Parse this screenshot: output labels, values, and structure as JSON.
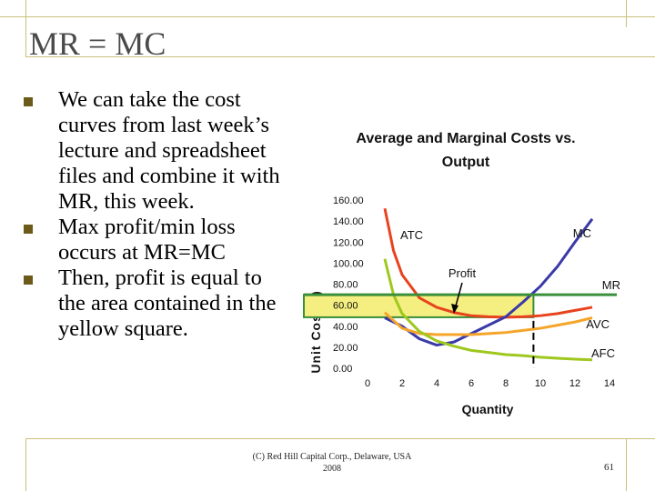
{
  "slide": {
    "title": "MR = MC",
    "bullets": [
      "We can take the cost curves from last week’s lecture and spreadsheet files and combine it with MR, this week.",
      "Max profit/min loss occurs at MR=MC",
      "Then, profit is equal to the area contained in the yellow square."
    ],
    "footer_line1": "(C) Red Hill Capital Corp., Delaware, USA",
    "footer_line2": "2008",
    "page_number": "61"
  },
  "chart_data": {
    "type": "line",
    "title": "Average and Marginal Costs vs. Output",
    "xlabel": "Quantity",
    "ylabel": "Unit Cost($)",
    "x_ticks": [
      "0",
      "2",
      "4",
      "6",
      "8",
      "10",
      "12",
      "14"
    ],
    "y_ticks": [
      "0.00",
      "20.00",
      "40.00",
      "60.00",
      "80.00",
      "100.00",
      "120.00",
      "140.00",
      "160.00"
    ],
    "xlim": [
      0,
      14
    ],
    "ylim": [
      0,
      160
    ],
    "grid": false,
    "series": [
      {
        "name": "ATC",
        "color": "#e8431e",
        "x": [
          1,
          1.5,
          2,
          3,
          4,
          5,
          6,
          7,
          8,
          9,
          10,
          11,
          12,
          13
        ],
        "y": [
          152,
          112,
          89,
          67,
          58,
          53,
          50,
          49,
          48.5,
          49,
          50,
          52,
          55,
          58
        ]
      },
      {
        "name": "MC",
        "color": "#3a3aa8",
        "x": [
          1,
          2,
          3,
          4,
          5,
          6,
          7,
          8,
          9,
          10,
          11,
          12,
          13
        ],
        "y": [
          48,
          40,
          28,
          22,
          25,
          33,
          41,
          49,
          63,
          78,
          97,
          120,
          142
        ]
      },
      {
        "name": "AVC",
        "color": "#f4a52a",
        "x": [
          1,
          2,
          3,
          4,
          5,
          6,
          7,
          8,
          9,
          10,
          11,
          12,
          13
        ],
        "y": [
          53,
          38,
          33,
          32,
          32,
          32,
          33,
          34,
          36,
          38,
          41,
          44,
          48
        ]
      },
      {
        "name": "AFC",
        "color": "#9ec81e",
        "x": [
          1,
          1.5,
          2,
          3,
          4,
          5,
          6,
          7,
          8,
          9,
          10,
          11,
          12,
          13
        ],
        "y": [
          104,
          70,
          52,
          35,
          26,
          21,
          17,
          15,
          13,
          12,
          10.5,
          9.5,
          8.7,
          8
        ]
      },
      {
        "name": "MR",
        "color": "#3a8f3a",
        "x": [
          0,
          14
        ],
        "y": [
          70,
          70
        ]
      }
    ],
    "labels": {
      "atc": "ATC",
      "mc": "MC",
      "mr": "MR",
      "avc": "AVC",
      "afc": "AFC",
      "profit": "Profit"
    },
    "profit_box": {
      "x": [
        0,
        9.6
      ],
      "y": [
        48.5,
        70
      ],
      "color": "#f5ee80",
      "border_color": "#3a8f3a"
    },
    "quantity_marker": {
      "x": 9.6,
      "color": "#000000"
    }
  }
}
